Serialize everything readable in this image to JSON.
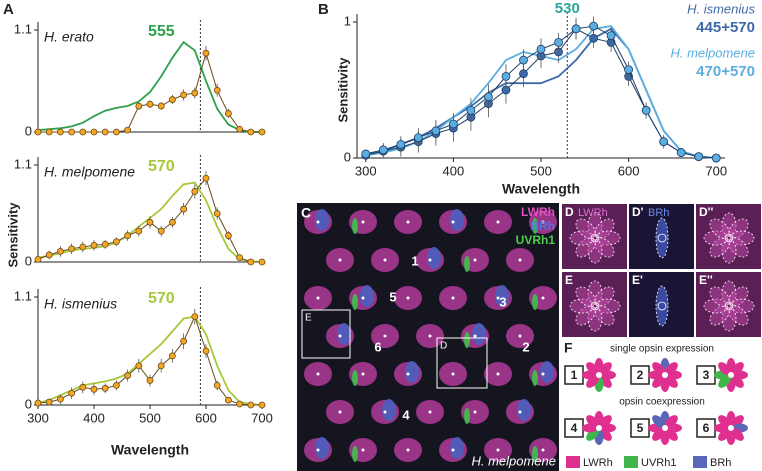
{
  "chart_data": [
    {
      "type": "line",
      "title": "H. erato",
      "annotation": "555",
      "xlim": [
        300,
        700
      ],
      "ylim": [
        0,
        1.1
      ],
      "yticks": [
        0,
        1.1
      ],
      "reference_x": 590,
      "x": [
        300,
        320,
        340,
        360,
        380,
        400,
        420,
        440,
        460,
        480,
        500,
        520,
        540,
        560,
        580,
        600,
        620,
        640,
        660,
        680,
        700
      ],
      "model": {
        "color": "#2ca24a",
        "values": [
          0.02,
          0.03,
          0.04,
          0.06,
          0.1,
          0.17,
          0.23,
          0.26,
          0.28,
          0.33,
          0.43,
          0.6,
          0.8,
          0.97,
          0.88,
          0.55,
          0.25,
          0.08,
          0.02,
          0,
          0
        ]
      },
      "measured": {
        "color": "#f5a623",
        "values": [
          0,
          0,
          0,
          0,
          0,
          0,
          0,
          0,
          0.02,
          0.28,
          0.3,
          0.28,
          0.35,
          0.4,
          0.42,
          0.85,
          0.45,
          0.2,
          0.03,
          0,
          0
        ],
        "errors": [
          0,
          0,
          0,
          0,
          0,
          0,
          0,
          0,
          0.02,
          0.04,
          0.04,
          0.04,
          0.05,
          0.06,
          0.06,
          0.08,
          0.07,
          0.05,
          0.02,
          0,
          0
        ]
      }
    },
    {
      "type": "line",
      "title": "H. melpomene",
      "annotation": "570",
      "xlim": [
        300,
        700
      ],
      "ylim": [
        0,
        1.1
      ],
      "yticks": [
        0,
        1.1
      ],
      "reference_x": 590,
      "x": [
        300,
        320,
        340,
        360,
        380,
        400,
        420,
        440,
        460,
        480,
        500,
        520,
        540,
        560,
        580,
        600,
        620,
        640,
        660,
        680,
        700
      ],
      "model": {
        "color": "#a6c93a",
        "values": [
          0.05,
          0.07,
          0.1,
          0.13,
          0.15,
          0.16,
          0.18,
          0.22,
          0.3,
          0.4,
          0.5,
          0.6,
          0.75,
          0.88,
          0.9,
          0.7,
          0.4,
          0.15,
          0.03,
          0.01,
          0
        ]
      },
      "measured": {
        "color": "#f5a623",
        "values": [
          0.03,
          0.08,
          0.12,
          0.15,
          0.17,
          0.19,
          0.2,
          0.23,
          0.3,
          0.35,
          0.45,
          0.35,
          0.45,
          0.6,
          0.8,
          0.95,
          0.55,
          0.3,
          0.05,
          0,
          0
        ],
        "errors": [
          0.03,
          0.05,
          0.06,
          0.06,
          0.06,
          0.06,
          0.05,
          0.05,
          0.06,
          0.06,
          0.07,
          0.06,
          0.06,
          0.07,
          0.08,
          0.08,
          0.07,
          0.05,
          0.03,
          0,
          0
        ]
      }
    },
    {
      "type": "line",
      "title": "H. ismenius",
      "annotation": "570",
      "xlim": [
        300,
        700
      ],
      "ylim": [
        0,
        1.1
      ],
      "yticks": [
        0,
        1.1
      ],
      "reference_x": 590,
      "xticks": [
        300,
        400,
        500,
        600,
        700
      ],
      "xlabel": "Wavelength",
      "ylabel": "Sensitivity",
      "x": [
        300,
        320,
        340,
        360,
        380,
        400,
        420,
        440,
        460,
        480,
        500,
        520,
        540,
        560,
        580,
        600,
        620,
        640,
        660,
        680,
        700
      ],
      "model": {
        "color": "#a6c93a",
        "values": [
          0.02,
          0.05,
          0.1,
          0.15,
          0.2,
          0.22,
          0.24,
          0.27,
          0.32,
          0.42,
          0.52,
          0.62,
          0.75,
          0.88,
          0.9,
          0.72,
          0.4,
          0.15,
          0.03,
          0.01,
          0
        ]
      },
      "measured": {
        "color": "#f5a623",
        "values": [
          0.02,
          0.03,
          0.06,
          0.12,
          0.18,
          0.16,
          0.17,
          0.2,
          0.3,
          0.4,
          0.25,
          0.4,
          0.5,
          0.65,
          0.9,
          0.55,
          0.2,
          0.05,
          0.01,
          0,
          0
        ],
        "errors": [
          0.02,
          0.03,
          0.05,
          0.06,
          0.06,
          0.06,
          0.05,
          0.05,
          0.06,
          0.07,
          0.06,
          0.07,
          0.07,
          0.08,
          0.08,
          0.07,
          0.05,
          0.03,
          0.01,
          0,
          0
        ]
      }
    },
    {
      "type": "multi",
      "xlim": [
        290,
        710
      ],
      "ylim": [
        0,
        1
      ],
      "yticks": [
        0,
        1
      ],
      "xticks": [
        300,
        400,
        500,
        600,
        700
      ],
      "xlabel": "Wavelength",
      "ylabel": "Sensitivity",
      "reference_x": 530,
      "annotation": "530",
      "x": [
        300,
        320,
        340,
        360,
        380,
        400,
        420,
        440,
        460,
        480,
        500,
        520,
        540,
        560,
        580,
        600,
        620,
        640,
        660,
        680,
        700
      ],
      "series": [
        {
          "name": "H. ismenius",
          "label": "445+570",
          "color": "#3d6aa8",
          "model": [
            0.02,
            0.05,
            0.1,
            0.15,
            0.22,
            0.3,
            0.38,
            0.48,
            0.55,
            0.55,
            0.55,
            0.6,
            0.72,
            0.88,
            0.95,
            0.8,
            0.5,
            0.2,
            0.05,
            0.01,
            0
          ],
          "measured": [
            0.02,
            0.05,
            0.08,
            0.12,
            0.18,
            0.22,
            0.3,
            0.4,
            0.5,
            0.62,
            0.75,
            0.78,
            0.95,
            0.88,
            0.85,
            0.6,
            0.35,
            0.12,
            0.04,
            0.01,
            0
          ],
          "errors": [
            0.03,
            0.05,
            0.07,
            0.08,
            0.09,
            0.1,
            0.1,
            0.1,
            0.1,
            0.1,
            0.09,
            0.08,
            0.08,
            0.07,
            0.07,
            0.07,
            0.06,
            0.05,
            0.03,
            0.01,
            0
          ]
        },
        {
          "name": "H. melpomene",
          "label": "470+570",
          "color": "#5aaee0",
          "model": [
            0.02,
            0.04,
            0.07,
            0.12,
            0.2,
            0.3,
            0.4,
            0.55,
            0.72,
            0.78,
            0.75,
            0.72,
            0.8,
            0.95,
            0.97,
            0.8,
            0.5,
            0.2,
            0.05,
            0.01,
            0
          ],
          "measured": [
            0.03,
            0.06,
            0.1,
            0.15,
            0.2,
            0.25,
            0.35,
            0.45,
            0.6,
            0.72,
            0.8,
            0.85,
            0.95,
            0.97,
            0.9,
            0.65,
            0.35,
            0.12,
            0.04,
            0.01,
            0
          ],
          "errors": [
            0.03,
            0.05,
            0.06,
            0.07,
            0.08,
            0.08,
            0.09,
            0.09,
            0.09,
            0.08,
            0.08,
            0.07,
            0.07,
            0.07,
            0.06,
            0.06,
            0.05,
            0.04,
            0.03,
            0.01,
            0
          ]
        }
      ]
    }
  ],
  "panel_labels": {
    "a": "A",
    "b": "B",
    "c": "C",
    "f": "F"
  },
  "micrograph": {
    "legend": [
      "LWRh",
      "BRh",
      "UVRh1"
    ],
    "numbers": [
      "1",
      "5",
      "3",
      "6",
      "2",
      "4"
    ],
    "boxes": [
      "E",
      "D"
    ],
    "species": "H. melpomene"
  },
  "detail_tiles": {
    "labels": [
      "D",
      "D'",
      "D''",
      "E",
      "E'",
      "E''"
    ],
    "stains": [
      "LWRh",
      "BRh"
    ]
  },
  "panel_f": {
    "single": "single opsin expression",
    "coexpression": "opsin coexpression",
    "items": [
      "1",
      "2",
      "3",
      "4",
      "5",
      "6"
    ],
    "legend": [
      "LWRh",
      "UVRh1",
      "BRh"
    ]
  }
}
